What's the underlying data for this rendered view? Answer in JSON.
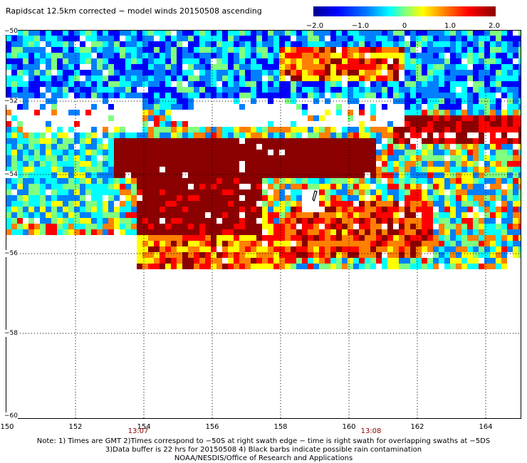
{
  "title": "Rapidscat 12.5km corrected − model winds 20150508 ascending",
  "colorbar": {
    "ticks": [
      {
        "label": "−2.0",
        "value": -2.0
      },
      {
        "label": "−1.0",
        "value": -1.0
      },
      {
        "label": "0",
        "value": 0.0
      },
      {
        "label": "1.0",
        "value": 1.0
      },
      {
        "label": "2.0",
        "value": 2.0
      }
    ],
    "colors": [
      "#00008f",
      "#0000ff",
      "#0080ff",
      "#00ffff",
      "#80ff80",
      "#ffff00",
      "#ff8000",
      "#ff0000",
      "#8b0000"
    ]
  },
  "map": {
    "x_ticks": [
      "150",
      "152",
      "154",
      "156",
      "158",
      "160",
      "162",
      "164"
    ],
    "y_ticks": [
      "−50",
      "−52",
      "−54",
      "−56",
      "−58",
      "−60"
    ],
    "time_marks": [
      {
        "label": "13:07",
        "lon": 153.8
      },
      {
        "label": "13:08",
        "lon": 160.7
      }
    ]
  },
  "notes": {
    "line1": "Note: 1) Times are GMT  2)Times correspond to −50S at right swath edge − time is right swath for overlapping swaths at −5DS",
    "line2": "3)Data buffer is 22 hrs for 20150508  4) Black barbs indicate possible rain contamination",
    "line3": "NOAA/NESDIS/Office of Research and Applications"
  },
  "chart_data": {
    "type": "heatmap",
    "title": "Rapidscat 12.5km corrected − model winds 20150508 ascending",
    "xlabel": "",
    "ylabel": "",
    "x_range_lon": [
      150,
      165
    ],
    "y_range_lat": [
      -50,
      -60
    ],
    "color_range": [
      -2.0,
      2.0
    ],
    "grid": true
  }
}
